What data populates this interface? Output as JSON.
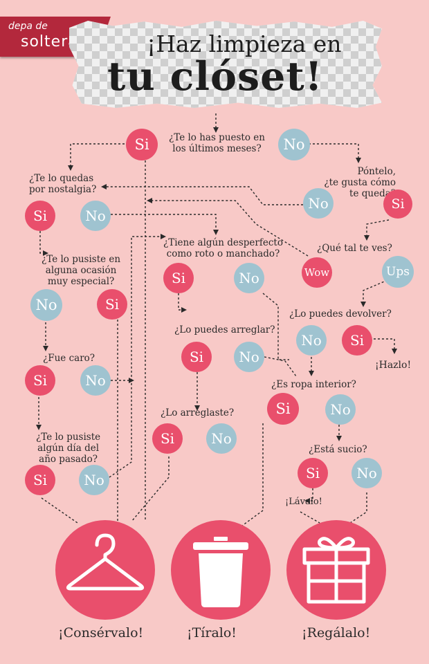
{
  "brand": {
    "line1": "depa de",
    "line2": "soltera"
  },
  "title": {
    "line1": "¡Haz limpieza en",
    "line2": "tu clóset!"
  },
  "colors": {
    "background": "#f8c9c7",
    "si": "#e94f6c",
    "no": "#9fc3d0",
    "outcome": "#e94f6c",
    "line": "#2a2a2a"
  },
  "questions": {
    "q1": [
      "¿Te lo has puesto en",
      "los últimos meses?"
    ],
    "q2": [
      "Póntelo,",
      "¿te gusta cómo",
      "te queda?"
    ],
    "q3": [
      "¿Te lo quedas",
      "por nostalgia?"
    ],
    "q4": "¿Qué tal te ves?",
    "q5": [
      "¿Tiene algún desperfecto",
      "como roto o manchado?"
    ],
    "q6": [
      "¿Te lo pusiste en",
      "alguna ocasión",
      "muy especial?"
    ],
    "q7": "¿Lo puedes devolver?",
    "q8": "¿Lo puedes arreglar?",
    "q9": "¿Fue caro?",
    "q10": "¿Es ropa interior?",
    "q11": "¿Lo arreglaste?",
    "q12": [
      "¿Te lo pusiste",
      "algún día del",
      "año pasado?"
    ],
    "q13": "¿Está sucio?"
  },
  "answers": {
    "si": "Si",
    "no": "No",
    "wow": "Wow",
    "ups": "Ups"
  },
  "actions": {
    "hazlo": "¡Hazlo!",
    "lavalo": "¡Lávalo!"
  },
  "outcomes": [
    {
      "label": "¡Consérvalo!",
      "icon": "hanger-icon"
    },
    {
      "label": "¡Tíralo!",
      "icon": "trash-can-icon"
    },
    {
      "label": "¡Regálalo!",
      "icon": "gift-icon"
    }
  ]
}
